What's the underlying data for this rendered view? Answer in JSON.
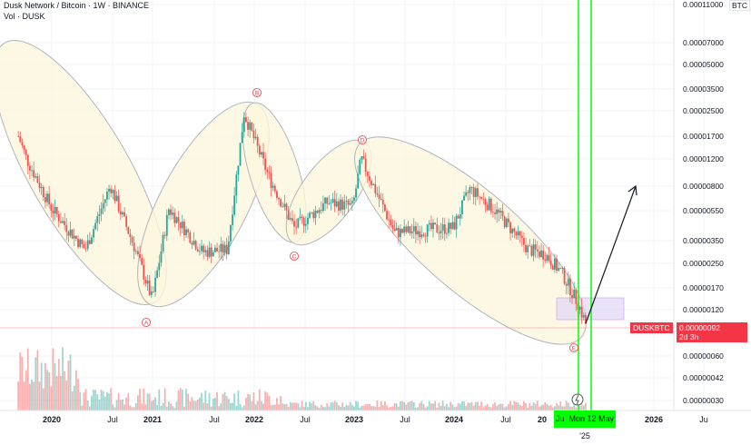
{
  "header": {
    "title": "Dusk Network / Bitcoin · 1W · BINANCE",
    "volume": "Vol · DUSK"
  },
  "symbol_tag": "DUSKBTC",
  "price_tag": "0.00000092",
  "countdown": "2d 3h",
  "currency": "BTC",
  "date_tag": "Mon 12 May '25",
  "date_tag_prefix": "Ju",
  "wave_labels": [
    "A",
    "B",
    "C",
    "D",
    "E"
  ],
  "colors": {
    "up": "#26a69a",
    "down": "#ef5350",
    "ellipse_fill": "#fbf6dd",
    "marker": "#f23645",
    "cursor_line": "#00ff00",
    "zone": "#e1d5f5"
  },
  "chart_data": {
    "type": "candlestick",
    "scale": "log",
    "yticks": [
      "0.00011000",
      "0.00007000",
      "0.00005000",
      "0.00003500",
      "0.00002500",
      "0.00001700",
      "0.00001200",
      "0.00000800",
      "0.00000550",
      "0.00000350",
      "0.00000250",
      "0.00000170",
      "0.00000120",
      "0.00000060",
      "0.00000042",
      "0.00000030"
    ],
    "xticks": [
      "2020",
      "Jul",
      "2021",
      "Jul",
      "2022",
      "Jul",
      "2023",
      "Jul",
      "2024",
      "Jul",
      "20",
      "2026",
      "Ju"
    ],
    "last_price": 9.2e-07,
    "closes": [
      [
        "2019-09",
        1.7e-05
      ],
      [
        "2019-10",
        1.2e-05
      ],
      [
        "2020-01",
        5.6e-06
      ],
      [
        "2020-05",
        3e-06
      ],
      [
        "2020-08",
        8e-06
      ],
      [
        "2020-11",
        3e-06
      ],
      [
        "2021-01",
        1.4e-06
      ],
      [
        "2021-03",
        5.6e-06
      ],
      [
        "2021-07",
        2.9e-06
      ],
      [
        "2021-10",
        3e-06
      ],
      [
        "2021-12",
        2.4e-05
      ],
      [
        "2022-03",
        9e-06
      ],
      [
        "2022-06",
        4.2e-06
      ],
      [
        "2022-10",
        6.2e-06
      ],
      [
        "2023-01",
        5.8e-06
      ],
      [
        "2023-02",
        1.2e-05
      ],
      [
        "2023-06",
        3.9e-06
      ],
      [
        "2024-01",
        4.2e-06
      ],
      [
        "2024-03",
        7.6e-06
      ],
      [
        "2024-06",
        5.5e-06
      ],
      [
        "2024-10",
        3e-06
      ],
      [
        "2024-12",
        2.8e-06
      ],
      [
        "2025-02",
        2.1e-06
      ],
      [
        "2025-04",
        1.3e-06
      ],
      [
        "2025-05",
        9.2e-07
      ]
    ],
    "projection": {
      "from": [
        "2025-05",
        9.2e-07
      ],
      "to": [
        "2025-11",
        8.5e-06
      ]
    }
  }
}
